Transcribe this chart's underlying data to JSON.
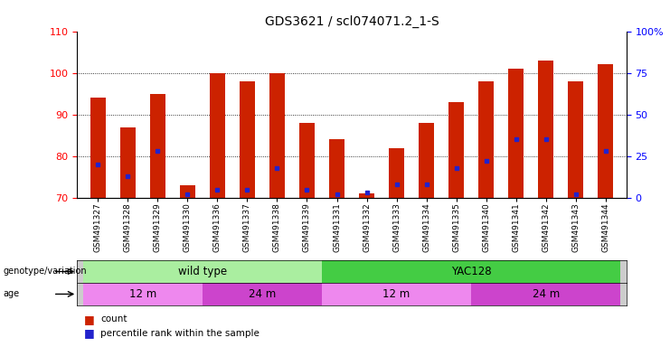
{
  "title": "GDS3621 / scl074071.2_1-S",
  "categories": [
    "GSM491327",
    "GSM491328",
    "GSM491329",
    "GSM491330",
    "GSM491336",
    "GSM491337",
    "GSM491338",
    "GSM491339",
    "GSM491331",
    "GSM491332",
    "GSM491333",
    "GSM491334",
    "GSM491335",
    "GSM491340",
    "GSM491341",
    "GSM491342",
    "GSM491343",
    "GSM491344"
  ],
  "counts": [
    94,
    87,
    95,
    73,
    100,
    98,
    100,
    88,
    84,
    71,
    82,
    88,
    93,
    98,
    101,
    103,
    98,
    102
  ],
  "percentile_ranks_pct": [
    20,
    13,
    28,
    2,
    5,
    5,
    18,
    5,
    2,
    3,
    8,
    8,
    18,
    22,
    35,
    35,
    2,
    28
  ],
  "ylim_left": [
    70,
    110
  ],
  "ylim_right": [
    0,
    100
  ],
  "bar_color": "#cc2200",
  "dot_color": "#2222cc",
  "bg_color": "#ffffff",
  "genotype_groups": [
    {
      "label": "wild type",
      "start": 0,
      "end": 8,
      "color": "#aaeea0"
    },
    {
      "label": "YAC128",
      "start": 8,
      "end": 18,
      "color": "#44cc44"
    }
  ],
  "age_groups": [
    {
      "label": "12 m",
      "start": 0,
      "end": 4,
      "color": "#ee88ee"
    },
    {
      "label": "24 m",
      "start": 4,
      "end": 8,
      "color": "#cc44cc"
    },
    {
      "label": "12 m",
      "start": 8,
      "end": 13,
      "color": "#ee88ee"
    },
    {
      "label": "24 m",
      "start": 13,
      "end": 18,
      "color": "#cc44cc"
    }
  ],
  "legend_items": [
    {
      "label": "count",
      "color": "#cc2200"
    },
    {
      "label": "percentile rank within the sample",
      "color": "#2222cc"
    }
  ]
}
